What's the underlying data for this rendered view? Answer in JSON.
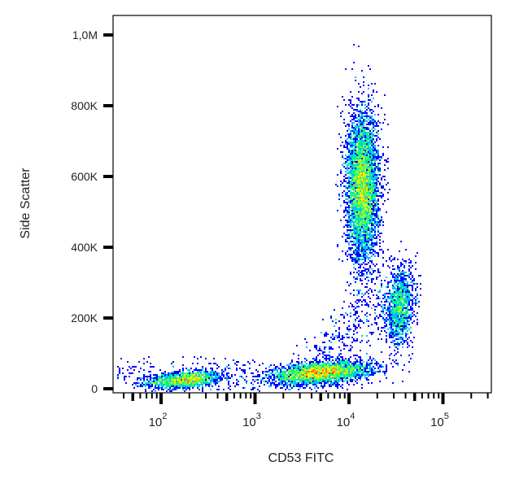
{
  "chart_data": {
    "type": "scatter",
    "subtype": "density-dot-plot",
    "xlabel": "CD53 FITC",
    "ylabel": "Side Scatter",
    "x_scale": "log",
    "xlim": [
      30,
      340000
    ],
    "ylim": [
      0,
      1050000
    ],
    "x_ticks": [
      {
        "value": 100,
        "base": "10",
        "exp": "2"
      },
      {
        "value": 1000,
        "base": "10",
        "exp": "3"
      },
      {
        "value": 10000,
        "base": "10",
        "exp": "4"
      },
      {
        "value": 100000,
        "base": "10",
        "exp": "5"
      }
    ],
    "y_ticks": [
      {
        "value": 0,
        "label": "0"
      },
      {
        "value": 200000,
        "label": "200K"
      },
      {
        "value": 400000,
        "label": "400K"
      },
      {
        "value": 600000,
        "label": "600K"
      },
      {
        "value": 800000,
        "label": "800K"
      },
      {
        "value": 1000000,
        "label": "1,0M"
      }
    ],
    "colormap": [
      "#0000ff",
      "#00c0ff",
      "#00ff80",
      "#ffff00",
      "#ff0000"
    ],
    "grid": false,
    "populations": [
      {
        "x_center": 180,
        "y_center": 25000,
        "n": 1500
      },
      {
        "x_center": 5000,
        "y_center": 45000,
        "n": 3200
      },
      {
        "x_center": 14000,
        "y_center": 570000,
        "n": 5000
      },
      {
        "x_center": 35000,
        "y_center": 230000,
        "n": 1300
      }
    ]
  }
}
